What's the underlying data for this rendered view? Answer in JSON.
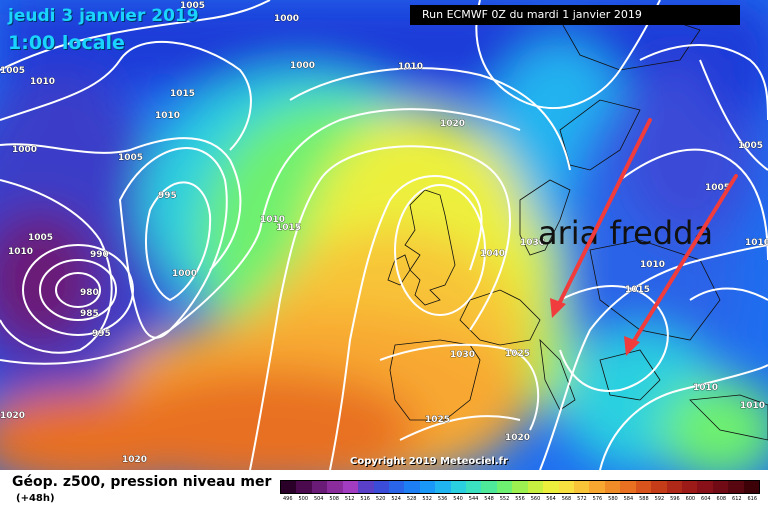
{
  "header": {
    "date": "jeudi 3 janvier 2019",
    "time": "1:00 locale",
    "run": "Run ECMWF 0Z du mardi 1 janvier 2019"
  },
  "annotation": {
    "text": "aria fredda",
    "arrow_color": "#f03c3c"
  },
  "copyright": "Copyright 2019 Meteociel.fr",
  "legend": {
    "title": "Géop. z500, pression niveau mer",
    "subtitle": "(+48h)",
    "values": [
      "496",
      "500",
      "504",
      "508",
      "512",
      "516",
      "520",
      "524",
      "528",
      "532",
      "536",
      "540",
      "544",
      "548",
      "552",
      "556",
      "560",
      "564",
      "568",
      "572",
      "576",
      "580",
      "584",
      "588",
      "592",
      "596",
      "600",
      "604",
      "608",
      "612",
      "616"
    ],
    "colors": [
      "#2a0028",
      "#4b0a4e",
      "#6a1b78",
      "#8a2c9c",
      "#a23cc0",
      "#5a3fc8",
      "#3a4cd8",
      "#2a64e8",
      "#1e7ef4",
      "#1a98f8",
      "#20b4f0",
      "#2ad0e0",
      "#3ae0c0",
      "#4ee89a",
      "#6ef070",
      "#9cf050",
      "#c8f040",
      "#ecf03c",
      "#f8e040",
      "#f8c438",
      "#f8a830",
      "#f08c28",
      "#e87020",
      "#d8541c",
      "#c43c18",
      "#b02818",
      "#9c1a18",
      "#881018",
      "#700a14",
      "#580610",
      "#3c0208"
    ]
  },
  "isobars": [
    "1005",
    "1000",
    "1005",
    "1010",
    "1015",
    "1010",
    "1000",
    "1005",
    "995",
    "1010",
    "1015",
    "1005",
    "990",
    "980",
    "985",
    "995",
    "1000",
    "1020",
    "1000",
    "1010",
    "1010",
    "1040",
    "1030",
    "1025",
    "1020",
    "1025",
    "1030",
    "1005",
    "1010",
    "1015",
    "1010",
    "1010",
    "1020",
    "1020",
    "1000",
    "1005",
    "1010"
  ]
}
